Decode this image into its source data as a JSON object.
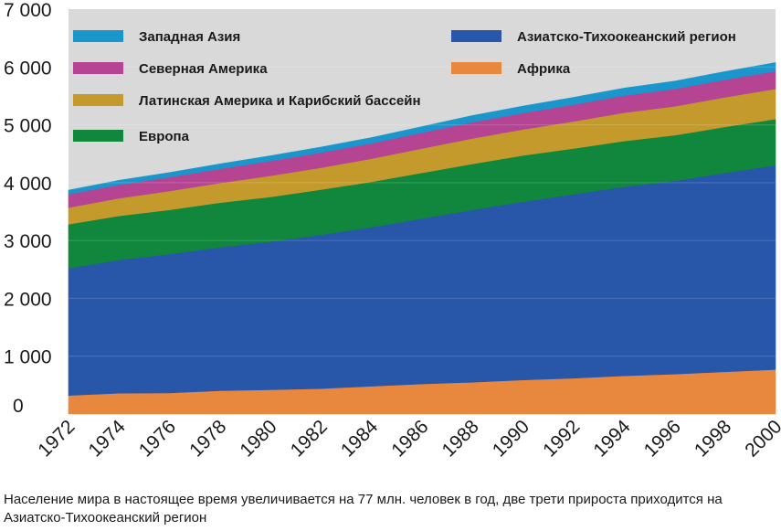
{
  "caption": "Население мира в настоящее время увеличивается на 77 млн. человек в год, две трети прироста приходится на Азиатско-Тихоокеанский регион",
  "chart_data": {
    "type": "area",
    "stacked": true,
    "x": [
      1972,
      1974,
      1976,
      1978,
      1980,
      1982,
      1984,
      1986,
      1988,
      1990,
      1992,
      1994,
      1996,
      1998,
      2000
    ],
    "x_tick_labels": [
      "1972",
      "1974",
      "1976",
      "1978",
      "1980",
      "1982",
      "1984",
      "1986",
      "1988",
      "1990",
      "1992",
      "1994",
      "1996",
      "1998",
      "2000"
    ],
    "ylim": [
      0,
      7000
    ],
    "y_ticks": [
      0,
      1000,
      2000,
      3000,
      4000,
      5000,
      6000,
      7000
    ],
    "y_tick_labels": [
      "0",
      "1 000",
      "2 000",
      "3 000",
      "4 000",
      "5 000",
      "6 000",
      "7 000"
    ],
    "grid": true,
    "background_color": "#d9d9d9",
    "legend_position": "top",
    "series": [
      {
        "name": "Африка",
        "color": "#e8873e",
        "values": [
          320,
          360,
          365,
          405,
          420,
          440,
          480,
          520,
          550,
          590,
          620,
          660,
          690,
          730,
          770
        ]
      },
      {
        "name": "Азиатско-Тихоокеанский регион",
        "color": "#2856a8",
        "values": [
          2200,
          2305,
          2400,
          2480,
          2560,
          2660,
          2750,
          2860,
          2980,
          3080,
          3180,
          3270,
          3340,
          3440,
          3530
        ]
      },
      {
        "name": "Европа",
        "color": "#10873c",
        "values": [
          760,
          760,
          765,
          770,
          775,
          780,
          785,
          790,
          795,
          800,
          790,
          790,
          790,
          795,
          800
        ]
      },
      {
        "name": "Латинская Америка и Карибский бассейн",
        "color": "#c49a2c",
        "values": [
          290,
          305,
          325,
          340,
          365,
          380,
          400,
          420,
          440,
          450,
          470,
          490,
          500,
          510,
          520
        ]
      },
      {
        "name": "Северная Америка",
        "color": "#b54493",
        "values": [
          230,
          235,
          240,
          245,
          255,
          260,
          265,
          275,
          280,
          285,
          290,
          295,
          300,
          305,
          310
        ]
      },
      {
        "name": "Западная Азия",
        "color": "#1a96cc",
        "values": [
          70,
          75,
          80,
          85,
          90,
          95,
          100,
          105,
          115,
          120,
          125,
          130,
          135,
          140,
          145
        ]
      }
    ],
    "legend": [
      {
        "name": "Западная Азия",
        "color": "#1a96cc"
      },
      {
        "name": "Северная Америка",
        "color": "#b54493"
      },
      {
        "name": "Латинская Америка и Карибский бассейн",
        "color": "#c49a2c"
      },
      {
        "name": "Европа",
        "color": "#10873c"
      },
      {
        "name": "Азиатско-Тихоокеанский регион",
        "color": "#2856a8"
      },
      {
        "name": "Африка",
        "color": "#e8873e"
      }
    ]
  }
}
